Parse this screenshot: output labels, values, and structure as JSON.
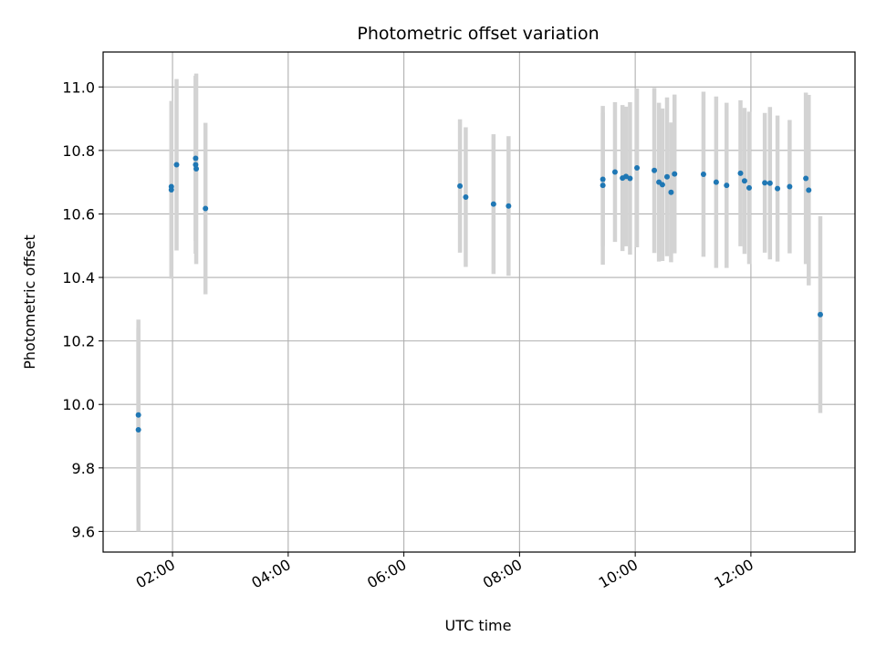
{
  "chart_data": {
    "type": "scatter",
    "title": "Photometric offset variation",
    "xlabel": "UTC time",
    "ylabel": "Photometric offset",
    "x_unit": "hours UTC",
    "xlim": [
      0.8,
      13.8
    ],
    "ylim": [
      9.535,
      11.11
    ],
    "grid": true,
    "x_ticks": [
      {
        "value": 2,
        "label": "02:00"
      },
      {
        "value": 4,
        "label": "04:00"
      },
      {
        "value": 6,
        "label": "06:00"
      },
      {
        "value": 8,
        "label": "08:00"
      },
      {
        "value": 10,
        "label": "10:00"
      },
      {
        "value": 12,
        "label": "12:00"
      }
    ],
    "y_ticks": [
      {
        "value": 9.6,
        "label": "9.6"
      },
      {
        "value": 9.8,
        "label": "9.8"
      },
      {
        "value": 10.0,
        "label": "10.0"
      },
      {
        "value": 10.2,
        "label": "10.2"
      },
      {
        "value": 10.4,
        "label": "10.4"
      },
      {
        "value": 10.6,
        "label": "10.6"
      },
      {
        "value": 10.8,
        "label": "10.8"
      },
      {
        "value": 11.0,
        "label": "11.0"
      }
    ],
    "colors": {
      "point": "#1f77b4",
      "errorbar": "#d3d3d3",
      "grid": "#b0b0b0",
      "axis": "#000000"
    },
    "series": [
      {
        "name": "photometric offset",
        "x": [
          1.41,
          1.41,
          1.98,
          1.98,
          2.07,
          2.4,
          2.4,
          2.41,
          2.57,
          6.97,
          7.07,
          7.55,
          7.81,
          9.44,
          9.44,
          9.65,
          9.78,
          9.84,
          9.91,
          10.03,
          10.33,
          10.41,
          10.47,
          10.55,
          10.62,
          10.68,
          11.18,
          11.4,
          11.58,
          11.82,
          11.89,
          11.97,
          12.24,
          12.33,
          12.46,
          12.67,
          12.95,
          13.0,
          13.2
        ],
        "y": [
          9.967,
          9.92,
          10.686,
          10.676,
          10.755,
          10.775,
          10.755,
          10.742,
          10.617,
          10.688,
          10.653,
          10.631,
          10.625,
          10.709,
          10.69,
          10.732,
          10.713,
          10.718,
          10.712,
          10.745,
          10.737,
          10.7,
          10.692,
          10.717,
          10.668,
          10.726,
          10.725,
          10.7,
          10.69,
          10.728,
          10.704,
          10.682,
          10.698,
          10.697,
          10.68,
          10.686,
          10.712,
          10.675,
          10.283
        ],
        "y_err": [
          0.3,
          0.32,
          0.26,
          0.28,
          0.27,
          0.26,
          0.28,
          0.3,
          0.27,
          0.21,
          0.22,
          0.22,
          0.22,
          0.21,
          0.25,
          0.22,
          0.23,
          0.22,
          0.24,
          0.25,
          0.26,
          0.25,
          0.24,
          0.25,
          0.22,
          0.25,
          0.26,
          0.27,
          0.26,
          0.23,
          0.23,
          0.24,
          0.22,
          0.24,
          0.23,
          0.21,
          0.27,
          0.3,
          0.31
        ]
      }
    ]
  }
}
